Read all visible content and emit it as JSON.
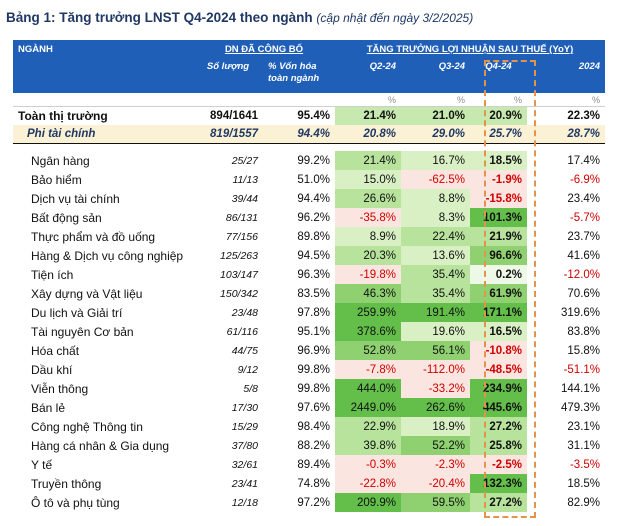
{
  "title": {
    "main": "Bảng 1: Tăng trưởng LNST Q4-2024 theo ngành",
    "note": "(cập nhật đến ngày 3/2/2025)"
  },
  "header": {
    "col_sector": "NGÀNH",
    "group_dn": "DN ĐÃ CÔNG BỐ",
    "group_growth": "TĂNG TRƯỞNG LỢI NHUẬN SAU THUẾ (YoY)",
    "sub_count": "Số lượng",
    "sub_mcap": "% Vốn hóa toàn ngành",
    "q2": "Q2-24",
    "q3": "Q3-24",
    "q4": "Q4-24",
    "y": "2024",
    "pct": "%"
  },
  "summary": [
    {
      "name": "Toàn thị trường",
      "count": "894/1641",
      "mcap": "95.4%",
      "q2": "21.4%",
      "q3": "21.0%",
      "q4": "20.9%",
      "y": "22.3%"
    },
    {
      "name": "Phi tài chính",
      "count": "819/1557",
      "mcap": "94.4%",
      "q2": "20.8%",
      "q3": "29.0%",
      "q4": "25.7%",
      "y": "28.7%"
    }
  ],
  "rows": [
    {
      "name": "Ngân hàng",
      "count": "25/27",
      "mcap": "99.2%",
      "q2": "21.4%",
      "q3": "16.7%",
      "q4": "18.5%",
      "y": "17.4%"
    },
    {
      "name": "Bảo hiểm",
      "count": "11/13",
      "mcap": "51.0%",
      "q2": "15.0%",
      "q3": "-62.5%",
      "q4": "-1.9%",
      "y": "-6.9%"
    },
    {
      "name": "Dịch vụ tài chính",
      "count": "39/44",
      "mcap": "94.4%",
      "q2": "26.6%",
      "q3": "8.8%",
      "q4": "-15.8%",
      "y": "23.4%"
    },
    {
      "name": "Bất động sản",
      "count": "86/131",
      "mcap": "96.2%",
      "q2": "-35.8%",
      "q3": "8.3%",
      "q4": "101.3%",
      "y": "-5.7%"
    },
    {
      "name": "Thực phẩm và đồ uống",
      "count": "77/156",
      "mcap": "89.8%",
      "q2": "8.9%",
      "q3": "22.4%",
      "q4": "21.9%",
      "y": "23.7%"
    },
    {
      "name": "Hàng & Dịch vụ công nghiệp",
      "count": "125/263",
      "mcap": "94.5%",
      "q2": "20.3%",
      "q3": "13.6%",
      "q4": "96.6%",
      "y": "41.6%"
    },
    {
      "name": "Tiện ích",
      "count": "103/147",
      "mcap": "96.3%",
      "q2": "-19.8%",
      "q3": "35.4%",
      "q4": "0.2%",
      "y": "-12.0%"
    },
    {
      "name": "Xây dựng và Vật liệu",
      "count": "150/342",
      "mcap": "83.5%",
      "q2": "46.3%",
      "q3": "35.4%",
      "q4": "61.9%",
      "y": "70.6%"
    },
    {
      "name": "Du lịch và Giải trí",
      "count": "23/48",
      "mcap": "97.8%",
      "q2": "259.9%",
      "q3": "191.4%",
      "q4": "171.1%",
      "y": "319.6%"
    },
    {
      "name": "Tài nguyên Cơ bản",
      "count": "61/116",
      "mcap": "95.1%",
      "q2": "378.6%",
      "q3": "19.6%",
      "q4": "16.5%",
      "y": "83.8%"
    },
    {
      "name": "Hóa chất",
      "count": "44/75",
      "mcap": "96.9%",
      "q2": "52.8%",
      "q3": "56.1%",
      "q4": "-10.8%",
      "y": "15.8%"
    },
    {
      "name": "Dầu khí",
      "count": "9/12",
      "mcap": "99.8%",
      "q2": "-7.8%",
      "q3": "-112.0%",
      "q4": "-48.5%",
      "y": "-51.1%"
    },
    {
      "name": "Viễn thông",
      "count": "5/8",
      "mcap": "99.8%",
      "q2": "444.0%",
      "q3": "-33.2%",
      "q4": "234.9%",
      "y": "144.1%"
    },
    {
      "name": "Bán lẻ",
      "count": "17/30",
      "mcap": "97.6%",
      "q2": "2449.0%",
      "q3": "262.6%",
      "q4": "445.6%",
      "y": "479.3%"
    },
    {
      "name": "Công nghệ Thông tin",
      "count": "15/29",
      "mcap": "98.4%",
      "q2": "22.9%",
      "q3": "18.9%",
      "q4": "27.2%",
      "y": "23.1%"
    },
    {
      "name": "Hàng cá nhân & Gia dụng",
      "count": "37/80",
      "mcap": "88.2%",
      "q2": "39.8%",
      "q3": "52.2%",
      "q4": "25.8%",
      "y": "31.1%"
    },
    {
      "name": "Y tế",
      "count": "32/61",
      "mcap": "89.4%",
      "q2": "-0.3%",
      "q3": "-2.3%",
      "q4": "-2.5%",
      "y": "-3.5%"
    },
    {
      "name": "Truyền thông",
      "count": "23/41",
      "mcap": "74.8%",
      "q2": "-22.8%",
      "q3": "-20.4%",
      "q4": "132.3%",
      "y": "18.5%"
    },
    {
      "name": "Ô tô và phụ tùng",
      "count": "12/18",
      "mcap": "97.2%",
      "q2": "209.9%",
      "q3": "59.5%",
      "q4": "27.2%",
      "y": "82.9%"
    }
  ]
}
